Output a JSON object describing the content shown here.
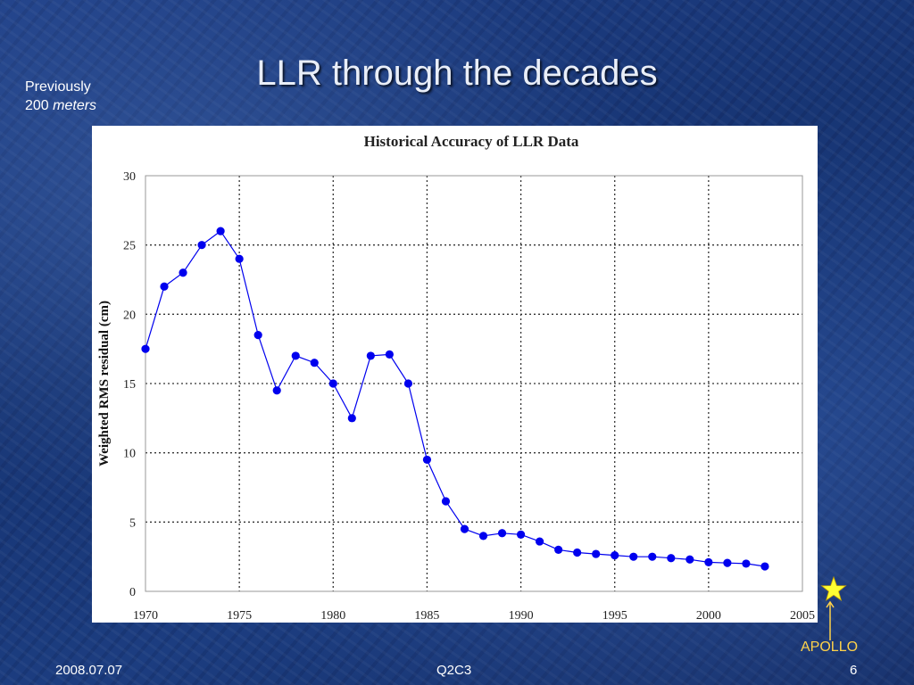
{
  "slide": {
    "title": "LLR through the decades",
    "previously_line1": "Previously",
    "previously_number": "200",
    "previously_unit": "meters",
    "apollo_label": "APOLLO",
    "apollo_icon": "star-icon",
    "footer_date": "2008.07.07",
    "footer_center": "Q2C3",
    "footer_page": "6",
    "colors": {
      "title_text": "#e9eef8",
      "background": "#1b3a7c",
      "apollo_accent": "#ffd24a",
      "star_fill": "#ffff33"
    }
  },
  "chart_data": {
    "type": "line",
    "title": "Historical Accuracy of LLR Data",
    "xlabel": "",
    "ylabel": "Weighted RMS residual (cm)",
    "xlim": [
      1970,
      2005
    ],
    "ylim": [
      0,
      30
    ],
    "xticks": [
      1970,
      1975,
      1980,
      1985,
      1990,
      1995,
      2000,
      2005
    ],
    "yticks": [
      0,
      5,
      10,
      15,
      20,
      25,
      30
    ],
    "grid": true,
    "line_color": "#0000ee",
    "marker_color": "#0000ee",
    "x": [
      1970,
      1971,
      1972,
      1973,
      1974,
      1975,
      1976,
      1977,
      1978,
      1979,
      1980,
      1981,
      1982,
      1983,
      1984,
      1985,
      1986,
      1987,
      1988,
      1989,
      1990,
      1991,
      1992,
      1993,
      1994,
      1995,
      1996,
      1997,
      1998,
      1999,
      2000,
      2001,
      2002,
      2003
    ],
    "y": [
      17.5,
      22,
      23,
      25,
      26,
      24,
      18.5,
      14.5,
      17,
      16.5,
      15,
      12.5,
      17,
      17.1,
      15,
      9.5,
      6.5,
      4.5,
      4,
      4.2,
      4.1,
      3.6,
      3.0,
      2.8,
      2.7,
      2.6,
      2.5,
      2.5,
      2.4,
      2.3,
      2.1,
      2.05,
      2.0,
      1.8
    ]
  }
}
